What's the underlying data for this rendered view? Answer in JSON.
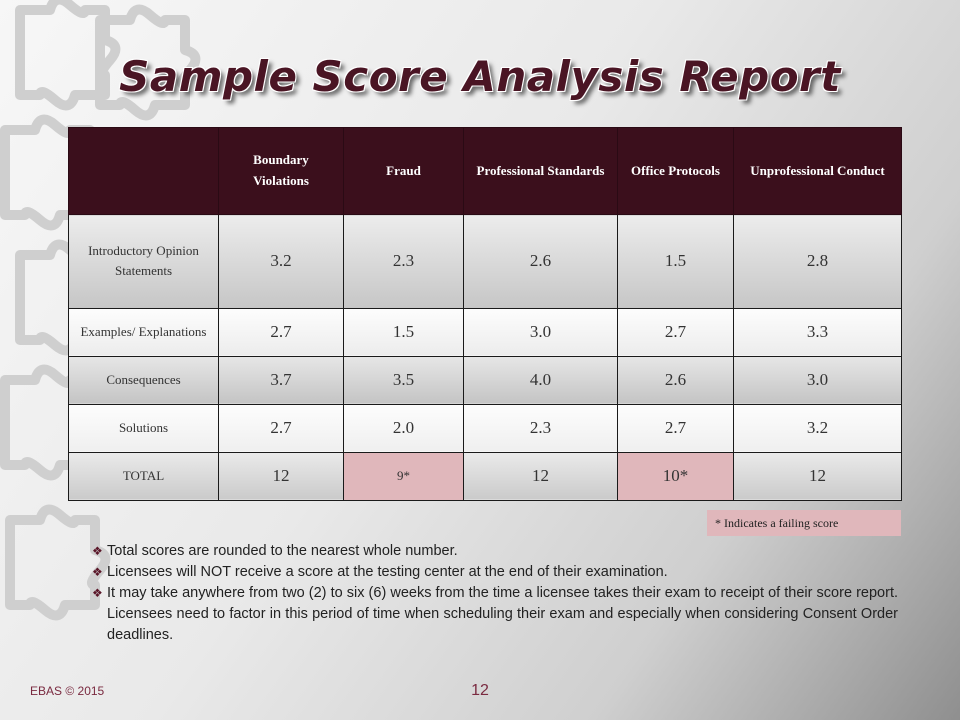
{
  "title": "Sample Score Analysis Report",
  "table": {
    "headers": [
      "",
      "Boundary Violations",
      "Fraud",
      "Professional Standards",
      "Office Protocols",
      "Unprofessional Conduct"
    ],
    "rows": [
      {
        "label": "Introductory Opinion Statements",
        "values": [
          "3.2",
          "2.3",
          "2.6",
          "1.5",
          "2.8"
        ]
      },
      {
        "label": "Examples/ Explanations",
        "values": [
          "2.7",
          "1.5",
          "3.0",
          "2.7",
          "3.3"
        ]
      },
      {
        "label": "Consequences",
        "values": [
          "3.7",
          "3.5",
          "4.0",
          "2.6",
          "3.0"
        ]
      },
      {
        "label": "Solutions",
        "values": [
          "2.7",
          "2.0",
          "2.3",
          "2.7",
          "3.2"
        ]
      },
      {
        "label": "TOTAL",
        "values": [
          "12",
          "9*",
          "12",
          "10*",
          "12"
        ]
      }
    ],
    "failing_color": "#e0b7bb",
    "header_color": "#3b0f1c"
  },
  "legend": "* Indicates a failing score",
  "notes": [
    "Total scores are rounded to the nearest whole number.",
    "Licensees will NOT receive a score at the testing center at the end of their examination.",
    "It may take anywhere from two (2) to six (6) weeks from the time a licensee takes their exam to receipt of their score report.   Licensees need to factor in this period of time when scheduling their exam and especially when considering Consent Order deadlines."
  ],
  "bullet_icon": "diamond-bullet-icon",
  "footer": "EBAS © 2015",
  "page_number": "12"
}
